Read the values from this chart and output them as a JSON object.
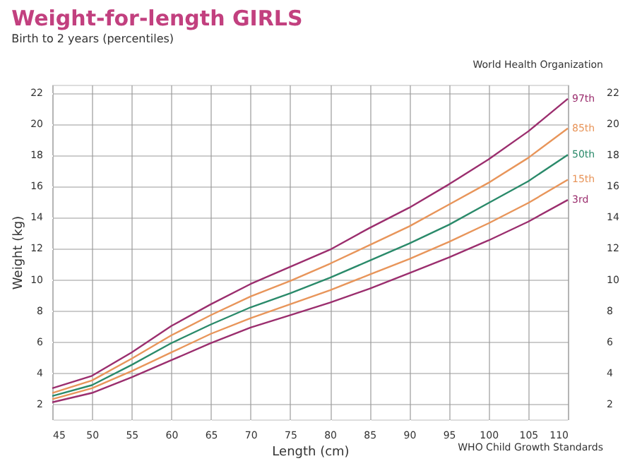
{
  "chart_data": {
    "type": "line",
    "title": "Weight-for-length GIRLS",
    "subtitle": "Birth to 2 years (percentiles)",
    "xlabel": "Length (cm)",
    "ylabel": "Weight (kg)",
    "annotations": [
      "World Health Organization",
      "WHO Child Growth Standards"
    ],
    "x": [
      45,
      50,
      55,
      60,
      65,
      70,
      75,
      80,
      85,
      90,
      95,
      100,
      105,
      110
    ],
    "series": [
      {
        "name": "97th",
        "color": "#9b2e6e",
        "values": [
          3.0,
          3.8,
          5.3,
          7.0,
          8.4,
          9.7,
          10.8,
          11.9,
          13.3,
          14.6,
          16.1,
          17.7,
          19.5,
          21.6
        ]
      },
      {
        "name": "85th",
        "color": "#e8955a",
        "values": [
          2.7,
          3.5,
          4.9,
          6.4,
          7.7,
          8.9,
          9.9,
          11.0,
          12.2,
          13.4,
          14.8,
          16.2,
          17.8,
          19.7
        ]
      },
      {
        "name": "50th",
        "color": "#2a8a6a",
        "values": [
          2.5,
          3.2,
          4.5,
          5.9,
          7.1,
          8.2,
          9.1,
          10.1,
          11.2,
          12.3,
          13.5,
          14.9,
          16.3,
          18.0
        ]
      },
      {
        "name": "15th",
        "color": "#e8955a",
        "values": [
          2.3,
          3.0,
          4.1,
          5.3,
          6.5,
          7.5,
          8.4,
          9.3,
          10.3,
          11.3,
          12.4,
          13.6,
          14.9,
          16.4
        ]
      },
      {
        "name": "3rd",
        "color": "#9b2e6e",
        "values": [
          2.1,
          2.7,
          3.7,
          4.8,
          5.9,
          6.9,
          7.7,
          8.5,
          9.4,
          10.4,
          11.4,
          12.5,
          13.7,
          15.1
        ]
      }
    ],
    "xlim": [
      45,
      110
    ],
    "xticks": [
      45,
      50,
      55,
      60,
      65,
      70,
      75,
      80,
      85,
      90,
      95,
      100,
      105,
      110
    ],
    "ylim": [
      1,
      22.5
    ],
    "yticks": [
      2,
      4,
      6,
      8,
      10,
      12,
      14,
      16,
      18,
      20,
      22
    ],
    "y2lim": [
      1,
      22.5
    ],
    "y2ticks": [
      2,
      4,
      6,
      8,
      10,
      12,
      14,
      16,
      18,
      20,
      22
    ],
    "grid": true,
    "marker": "none",
    "line_style": "solid"
  }
}
